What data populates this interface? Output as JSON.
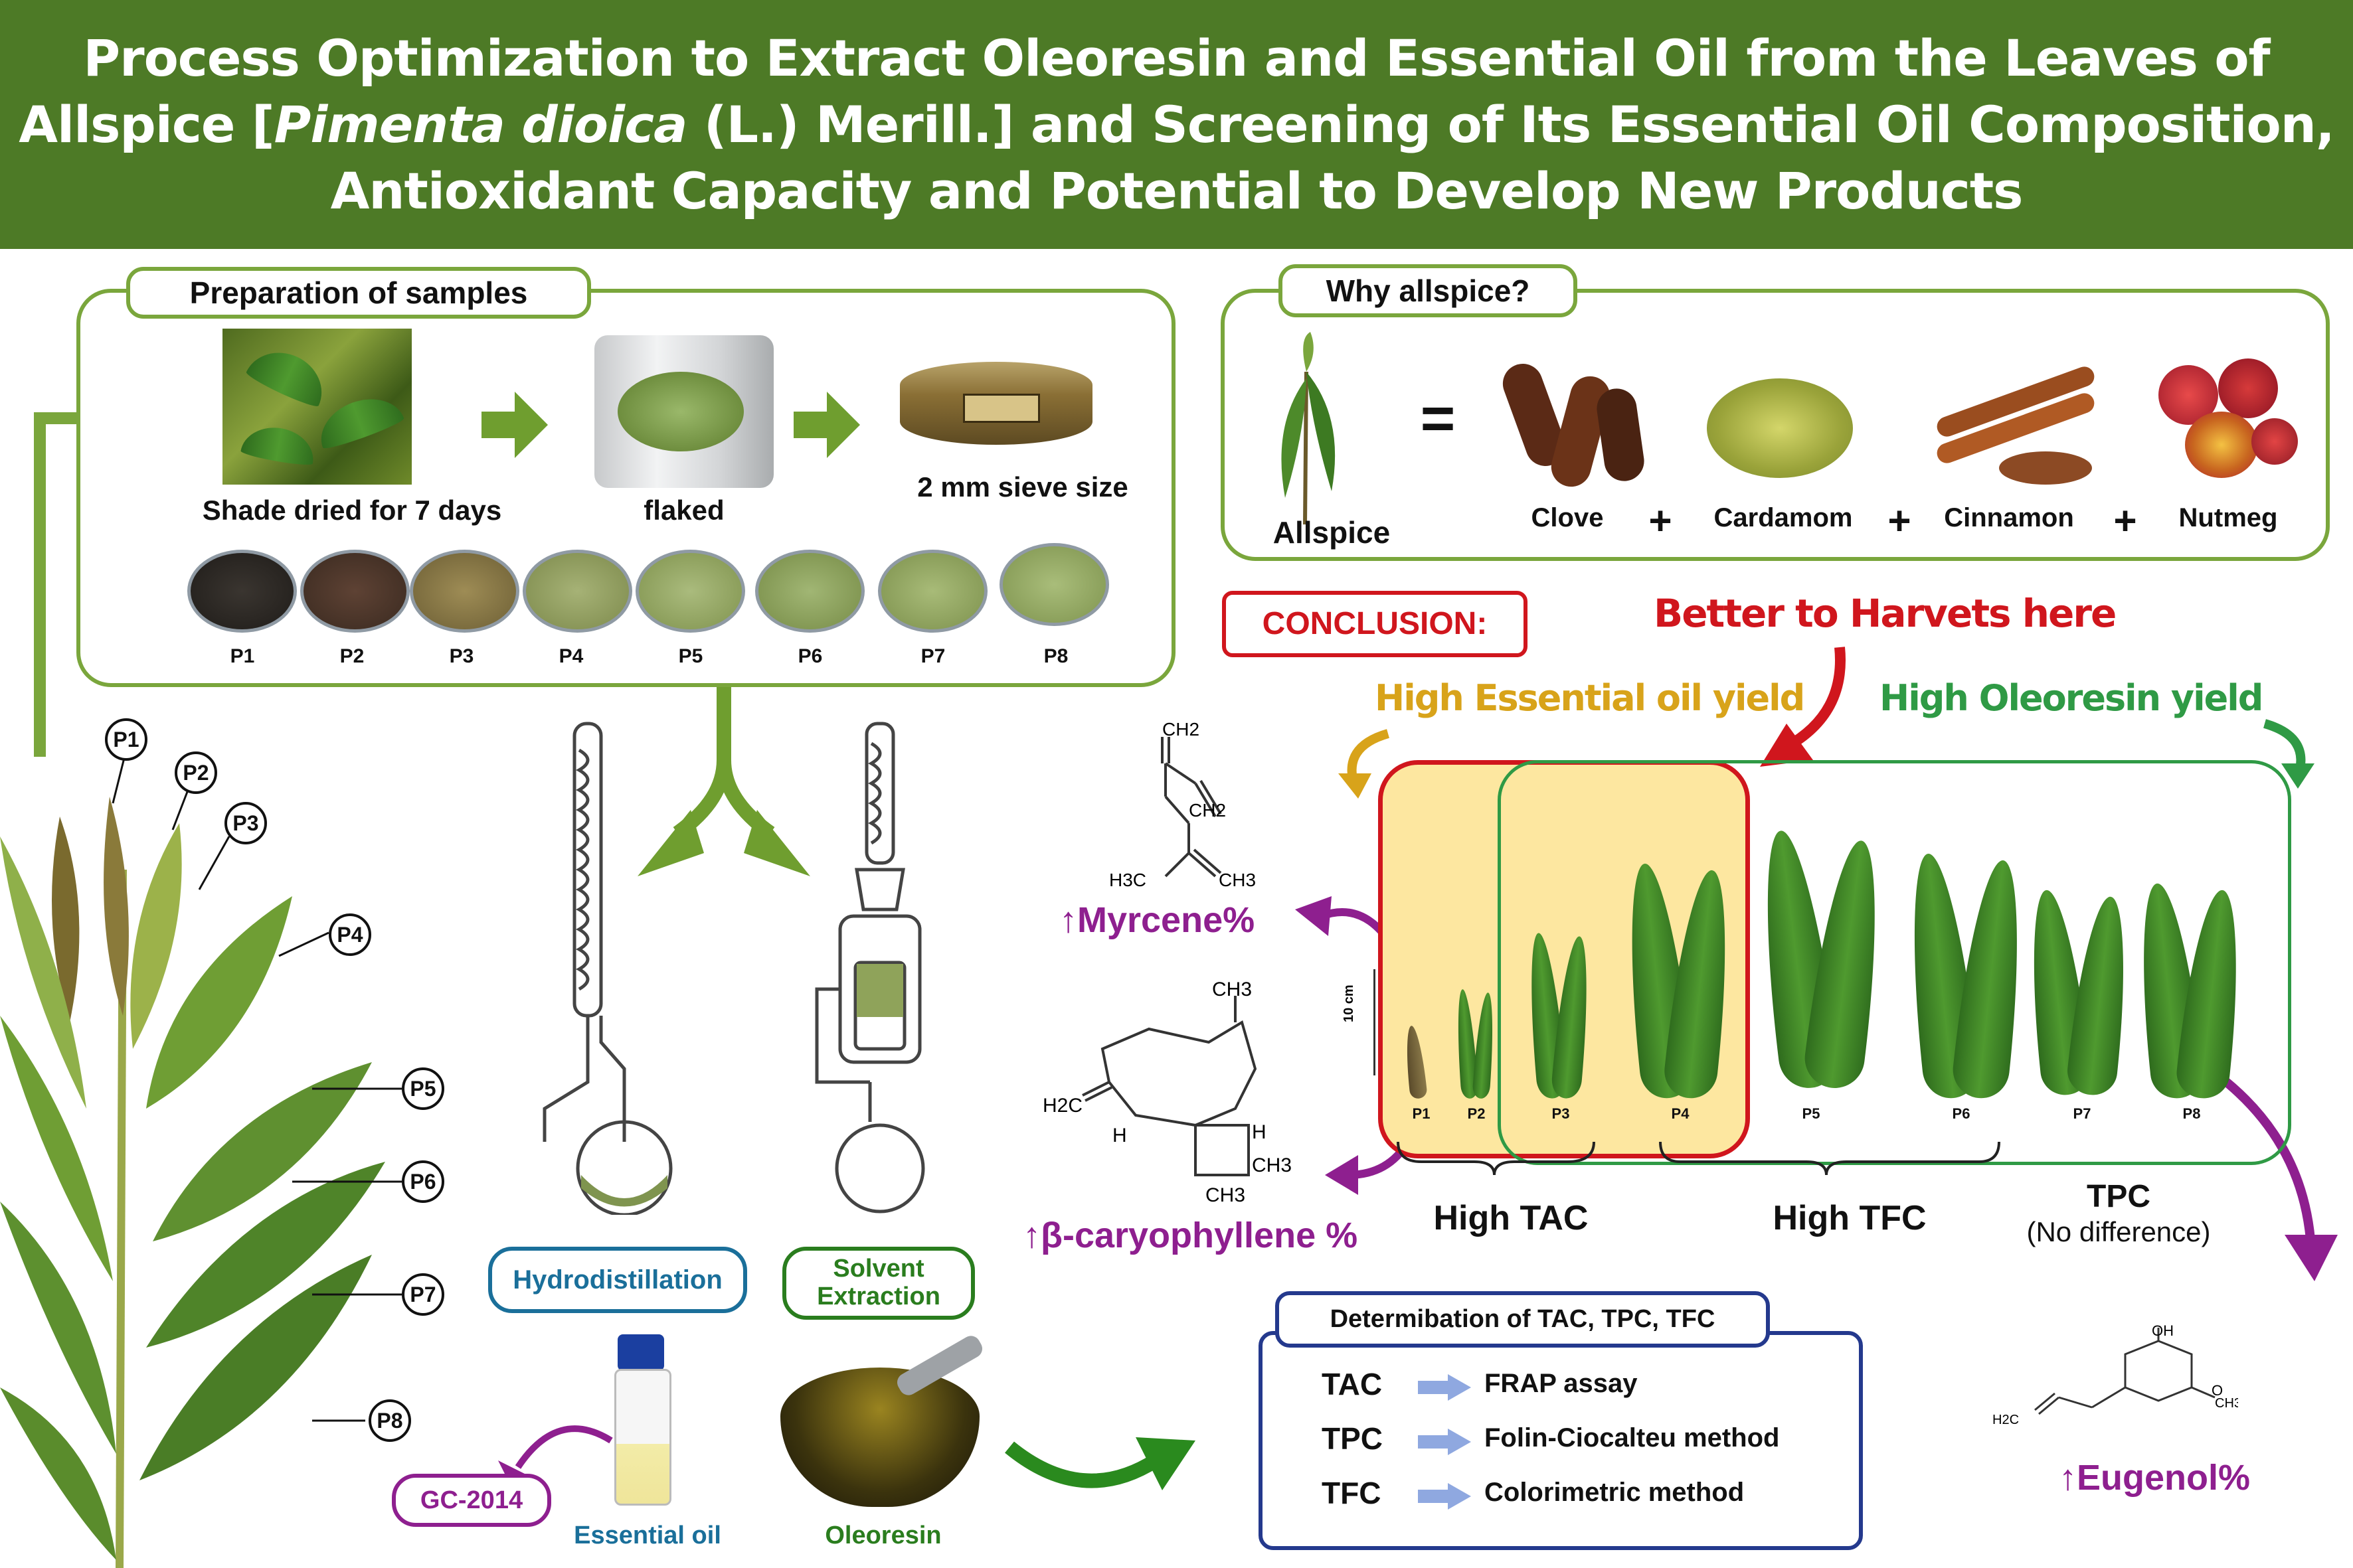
{
  "title": {
    "line1": "Process Optimization to Extract Oleoresin and Essential Oil from the Leaves of",
    "line2_pre": "Allspice [",
    "line2_italic": "Pimenta dioica",
    "line2_post": " (L.) Merill.] and Screening of Its Essential Oil Composition,",
    "line3": "Antioxidant Capacity and Potential to Develop New Products"
  },
  "preparation": {
    "heading": "Preparation of samples",
    "steps": [
      "Shade dried for 7 days",
      "flaked",
      "2 mm sieve size"
    ],
    "samples": [
      "P1",
      "P2",
      "P3",
      "P4",
      "P5",
      "P6",
      "P7",
      "P8"
    ]
  },
  "why": {
    "heading": "Why allspice?",
    "allspice": "Allspice",
    "equals": "=",
    "plus": "+",
    "spices": [
      "Clove",
      "Cardamom",
      "Cinnamon",
      "Nutmeg"
    ]
  },
  "branch_labels": [
    "P1",
    "P2",
    "P3",
    "P4",
    "P5",
    "P6",
    "P7",
    "P8"
  ],
  "methods": {
    "hydro": "Hydrodistillation",
    "solvent_line1": "Solvent",
    "solvent_line2": "Extraction",
    "gc": "GC-2014",
    "essential_oil": "Essential oil",
    "oleoresin": "Oleoresin"
  },
  "molecules": {
    "myrcene_labels": [
      "CH2",
      "CH2",
      "H3C",
      "CH3"
    ],
    "caryophyllene_labels": [
      "CH3",
      "H2C",
      "H",
      "H",
      "CH3",
      "CH3"
    ],
    "eugenol_labels": [
      "OH",
      "O",
      "CH3",
      "H2C"
    ],
    "myrcene": "Myrcene%",
    "caryophyllene": "β-caryophyllene %",
    "eugenol": "Eugenol%",
    "arrow_up": "↑"
  },
  "conclusion": {
    "label": "CONCLUSION:",
    "harvest": "Better to Harvets here",
    "eo_yield": "High Essential oil yield",
    "oleo_yield": "High Oleoresin yield",
    "scale": "10 cm",
    "leaf_labels": [
      "P1",
      "P2",
      "P3",
      "P4",
      "P5",
      "P6",
      "P7",
      "P8"
    ],
    "high_tac": "High TAC",
    "high_tfc": "High TFC",
    "tpc": "TPC",
    "tpc_note": "(No difference)"
  },
  "determination": {
    "heading": "Determibation of TAC, TPC, TFC",
    "rows": [
      {
        "assay": "TAC",
        "method": "FRAP assay"
      },
      {
        "assay": "TPC",
        "method": "Folin-Ciocalteu method"
      },
      {
        "assay": "TFC",
        "method": "Colorimetric method"
      }
    ]
  },
  "colors": {
    "header_green": "#4d7a26",
    "panel_green": "#7aa63c",
    "highlight_yellow": "#fde7a0",
    "conclusion_red": "#d0161d",
    "oleoresin_green": "#2f9a45",
    "essential_gold": "#d8a31a",
    "purple": "#8e1f8f",
    "determination_blue": "#24398d",
    "hydro_blue": "#1a6f9a"
  }
}
